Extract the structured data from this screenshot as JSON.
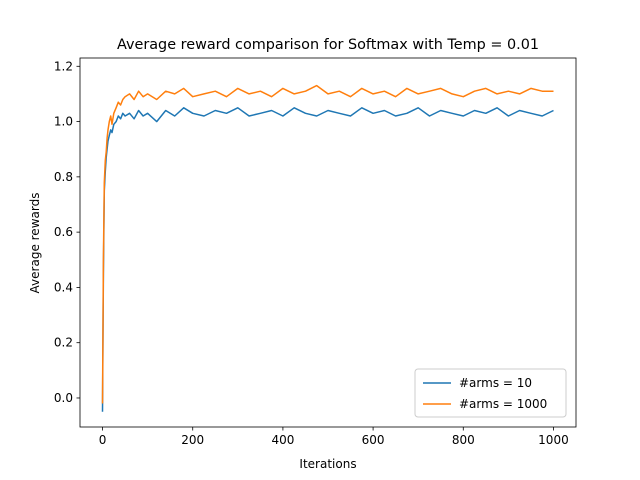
{
  "chart_data": {
    "type": "line",
    "title": "Average reward comparison for Softmax with Temp = 0.01",
    "xlabel": "Iterations",
    "ylabel": "Average rewards",
    "xlim": [
      -50,
      1050
    ],
    "ylim": [
      -0.105,
      1.23
    ],
    "xticks": [
      0,
      200,
      400,
      600,
      800,
      1000
    ],
    "xtick_labels": [
      "0",
      "200",
      "400",
      "600",
      "800",
      "1000"
    ],
    "yticks": [
      0.0,
      0.2,
      0.4,
      0.6,
      0.8,
      1.0,
      1.2
    ],
    "ytick_labels": [
      "0.0",
      "0.2",
      "0.4",
      "0.6",
      "0.8",
      "1.0",
      "1.2"
    ],
    "grid": false,
    "legend_position": "lower-right",
    "series": [
      {
        "name": "#arms = 10",
        "color": "#1f77b4",
        "x": [
          0,
          2,
          4,
          6,
          8,
          10,
          12,
          15,
          18,
          21,
          25,
          30,
          35,
          40,
          45,
          50,
          60,
          70,
          80,
          90,
          100,
          120,
          140,
          160,
          180,
          200,
          225,
          250,
          275,
          300,
          325,
          350,
          375,
          400,
          425,
          450,
          475,
          500,
          525,
          550,
          575,
          600,
          625,
          650,
          675,
          700,
          725,
          750,
          775,
          800,
          825,
          850,
          875,
          900,
          925,
          950,
          975,
          1000
        ],
        "y": [
          -0.05,
          0.45,
          0.75,
          0.82,
          0.87,
          0.9,
          0.93,
          0.95,
          0.97,
          0.96,
          0.99,
          1.0,
          1.02,
          1.01,
          1.03,
          1.02,
          1.03,
          1.01,
          1.04,
          1.02,
          1.03,
          1.0,
          1.04,
          1.02,
          1.05,
          1.03,
          1.02,
          1.04,
          1.03,
          1.05,
          1.02,
          1.03,
          1.04,
          1.02,
          1.05,
          1.03,
          1.02,
          1.04,
          1.03,
          1.02,
          1.05,
          1.03,
          1.04,
          1.02,
          1.03,
          1.05,
          1.02,
          1.04,
          1.03,
          1.02,
          1.04,
          1.03,
          1.05,
          1.02,
          1.04,
          1.03,
          1.02,
          1.04
        ]
      },
      {
        "name": "#arms = 1000",
        "color": "#ff7f0e",
        "x": [
          0,
          2,
          4,
          6,
          8,
          10,
          12,
          15,
          18,
          21,
          25,
          30,
          35,
          40,
          45,
          50,
          60,
          70,
          80,
          90,
          100,
          120,
          140,
          160,
          180,
          200,
          225,
          250,
          275,
          300,
          325,
          350,
          375,
          400,
          425,
          450,
          475,
          500,
          525,
          550,
          575,
          600,
          625,
          650,
          675,
          700,
          725,
          750,
          775,
          800,
          825,
          850,
          875,
          900,
          925,
          950,
          975,
          1000
        ],
        "y": [
          -0.02,
          0.5,
          0.78,
          0.86,
          0.89,
          0.94,
          0.97,
          1.0,
          1.02,
          0.99,
          1.03,
          1.05,
          1.07,
          1.06,
          1.08,
          1.09,
          1.1,
          1.08,
          1.11,
          1.09,
          1.1,
          1.08,
          1.11,
          1.1,
          1.12,
          1.09,
          1.1,
          1.11,
          1.09,
          1.12,
          1.1,
          1.11,
          1.09,
          1.12,
          1.1,
          1.11,
          1.13,
          1.1,
          1.11,
          1.09,
          1.12,
          1.1,
          1.11,
          1.09,
          1.12,
          1.1,
          1.11,
          1.12,
          1.1,
          1.09,
          1.11,
          1.12,
          1.1,
          1.11,
          1.1,
          1.12,
          1.11,
          1.11
        ]
      }
    ]
  }
}
